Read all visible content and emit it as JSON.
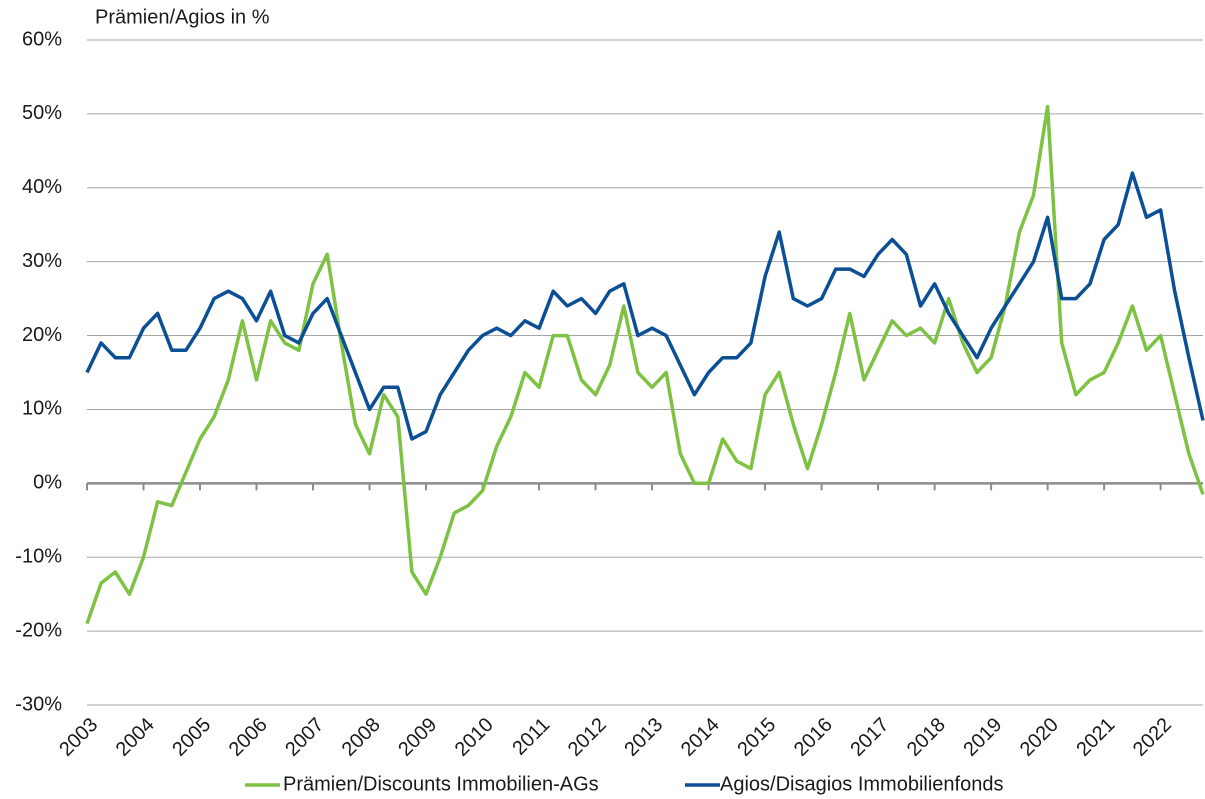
{
  "chart_data": {
    "type": "line",
    "title": "Prämien/Agios in %",
    "x": [
      2003,
      2003.25,
      2003.5,
      2003.75,
      2004,
      2004.25,
      2004.5,
      2004.75,
      2005,
      2005.25,
      2005.5,
      2005.75,
      2006,
      2006.25,
      2006.5,
      2006.75,
      2007,
      2007.25,
      2007.5,
      2007.75,
      2008,
      2008.25,
      2008.5,
      2008.75,
      2009,
      2009.25,
      2009.5,
      2009.75,
      2010,
      2010.25,
      2010.5,
      2010.75,
      2011,
      2011.25,
      2011.5,
      2011.75,
      2012,
      2012.25,
      2012.5,
      2012.75,
      2013,
      2013.25,
      2013.5,
      2013.75,
      2014,
      2014.25,
      2014.5,
      2014.75,
      2015,
      2015.25,
      2015.5,
      2015.75,
      2016,
      2016.25,
      2016.5,
      2016.75,
      2017,
      2017.25,
      2017.5,
      2017.75,
      2018,
      2018.25,
      2018.5,
      2018.75,
      2019,
      2019.25,
      2019.5,
      2019.75,
      2020,
      2020.25,
      2020.5,
      2020.75,
      2021,
      2021.25,
      2021.5,
      2021.75,
      2022,
      2022.25,
      2022.5,
      2022.75
    ],
    "series": [
      {
        "name": "Prämien/Discounts Immobilien-AGs",
        "color": "#7dc243",
        "values": [
          -19,
          -13.5,
          -12,
          -15,
          -10,
          -2.5,
          -3,
          1.5,
          6,
          9,
          14,
          22,
          14,
          22,
          19,
          18,
          27,
          31,
          19,
          8,
          4,
          12,
          9,
          -12,
          -15,
          -10,
          -4,
          -3,
          -1,
          5,
          9,
          15,
          13,
          20,
          20,
          14,
          12,
          16,
          24,
          15,
          13,
          15,
          4,
          0,
          0,
          6,
          3,
          2,
          12,
          15,
          8,
          2,
          8,
          15,
          23,
          14,
          18,
          22,
          20,
          21,
          19,
          25,
          19,
          15,
          17,
          24,
          34,
          39,
          51,
          19,
          12,
          14,
          15,
          19,
          24,
          18,
          20,
          12,
          4,
          -1.5
        ]
      },
      {
        "name": "Agios/Disagios Immobilienfonds",
        "color": "#0b4f94",
        "values": [
          15,
          19,
          17,
          17,
          21,
          23,
          18,
          18,
          21,
          25,
          26,
          25,
          22,
          26,
          20,
          19,
          23,
          25,
          20,
          15,
          10,
          13,
          13,
          6,
          7,
          12,
          15,
          18,
          20,
          21,
          20,
          22,
          21,
          26,
          24,
          25,
          23,
          26,
          27,
          20,
          21,
          20,
          16,
          12,
          15,
          17,
          17,
          19,
          28,
          34,
          25,
          24,
          25,
          29,
          29,
          28,
          31,
          33,
          31,
          24,
          27,
          23,
          20,
          17,
          21,
          24,
          27,
          30,
          36,
          25,
          25,
          27,
          33,
          35,
          42,
          36,
          37,
          26,
          17,
          8.5
        ]
      }
    ],
    "xlim": [
      2003,
      2022.75
    ],
    "xticks": [
      2003,
      2004,
      2005,
      2006,
      2007,
      2008,
      2009,
      2010,
      2011,
      2012,
      2013,
      2014,
      2015,
      2016,
      2017,
      2018,
      2019,
      2020,
      2021,
      2022
    ],
    "ylim": [
      -30,
      60
    ],
    "yticks": [
      {
        "value": -30,
        "label": "-30%"
      },
      {
        "value": -20,
        "label": "-20%"
      },
      {
        "value": -10,
        "label": "-10%"
      },
      {
        "value": 0,
        "label": "0%"
      },
      {
        "value": 10,
        "label": "10%"
      },
      {
        "value": 20,
        "label": "20%"
      },
      {
        "value": 30,
        "label": "30%"
      },
      {
        "value": 40,
        "label": "40%"
      },
      {
        "value": 50,
        "label": "50%"
      },
      {
        "value": 60,
        "label": "60%"
      }
    ],
    "grid": true
  }
}
